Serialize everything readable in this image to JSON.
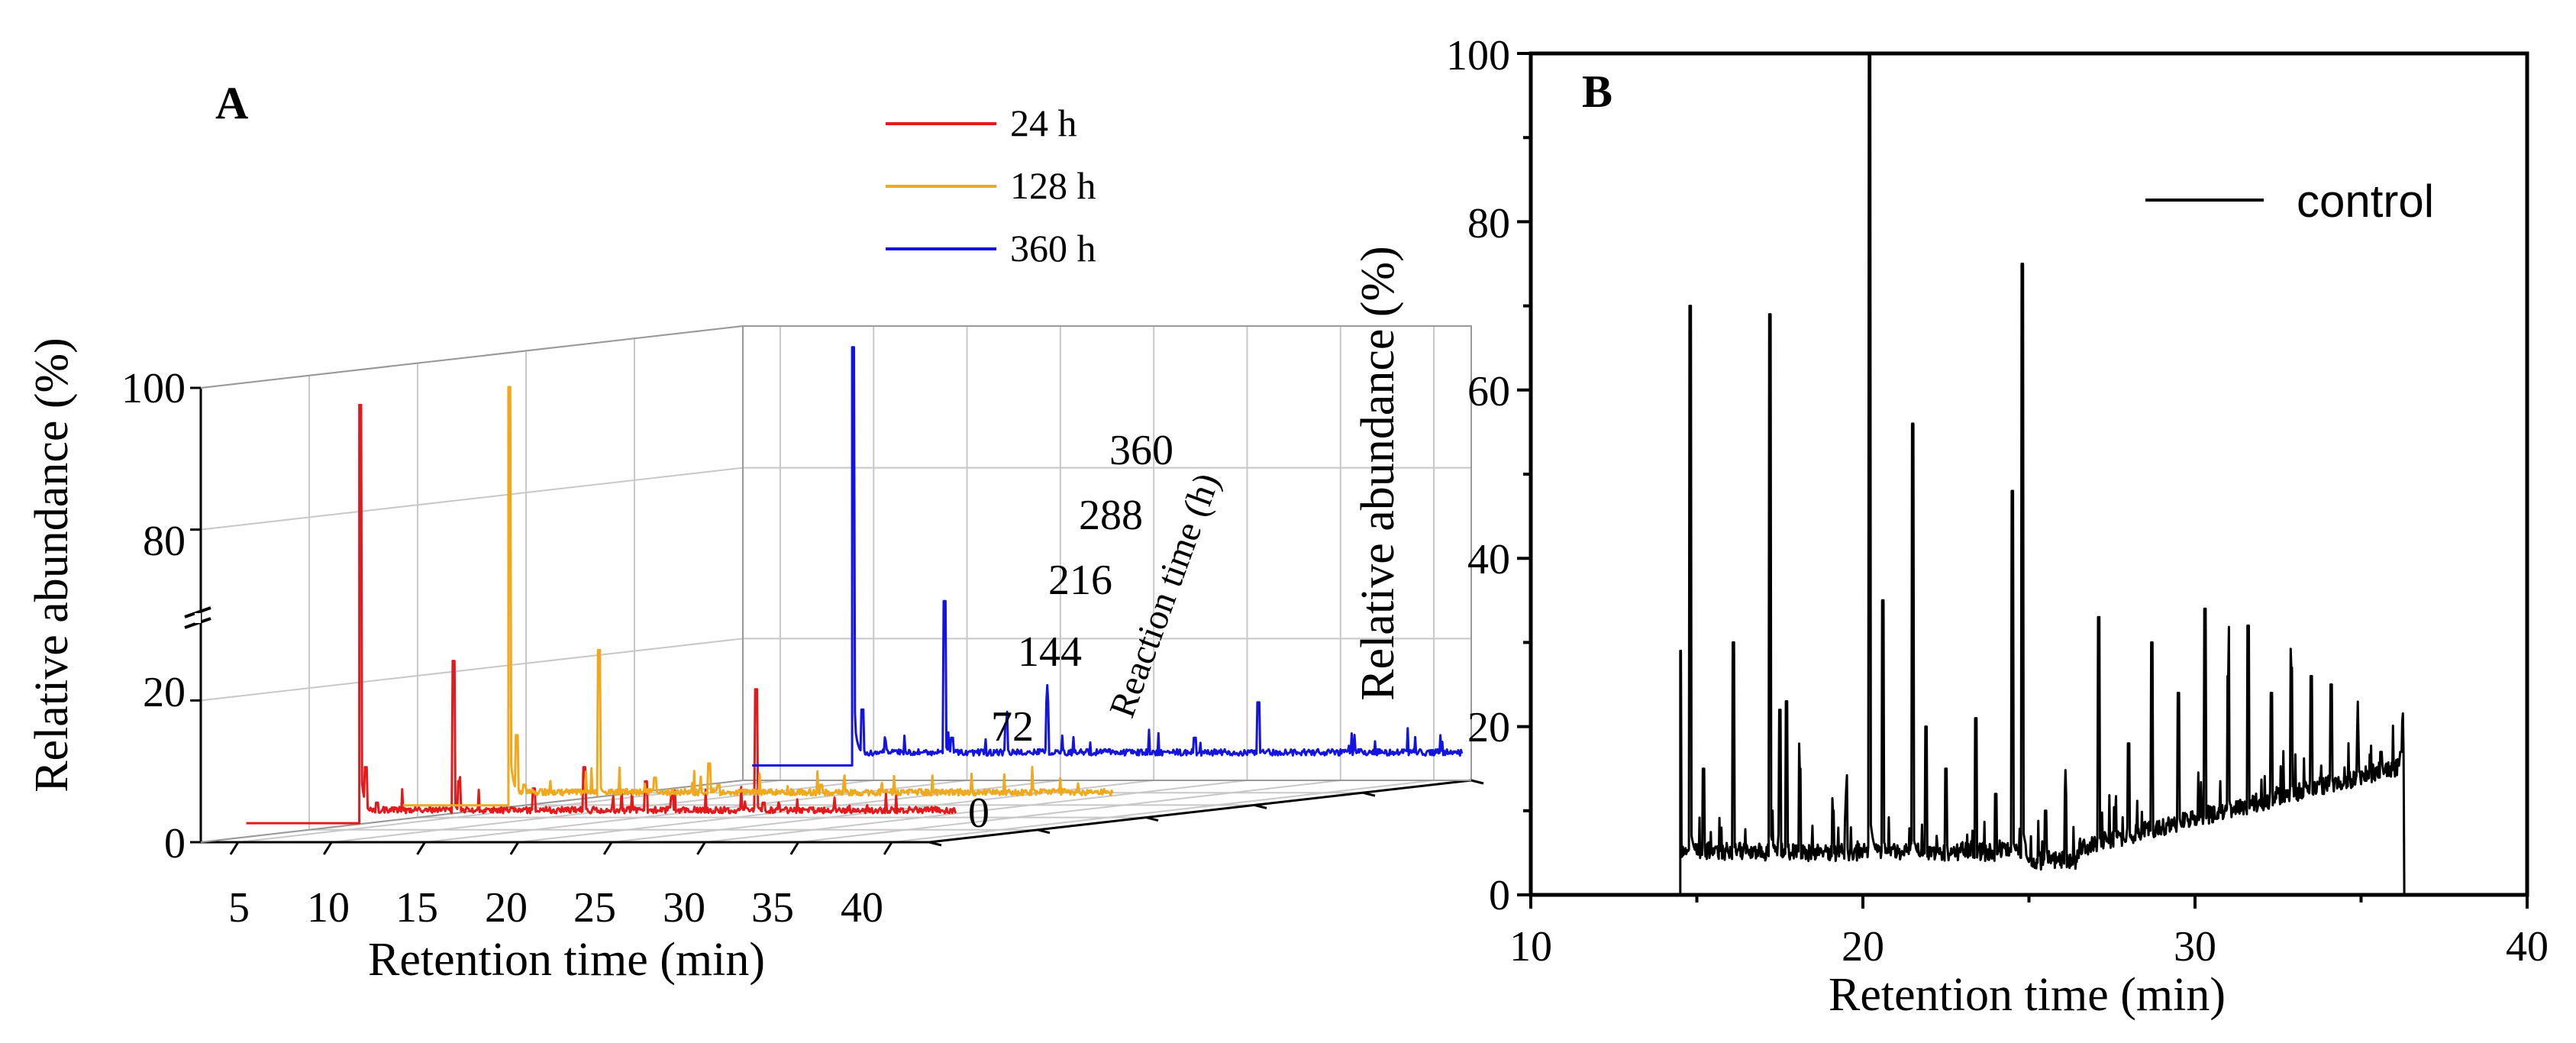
{
  "chart_data": [
    {
      "panel": "A",
      "type": "line",
      "projection": "3d-waterfall",
      "title": "",
      "xlabel": "Retention time (min)",
      "ylabel": "Relative abundance (%)",
      "zlabel": "Reaction time (h)",
      "xlim": [
        3,
        42
      ],
      "ylim": [
        0,
        100
      ],
      "y_break": [
        25,
        75
      ],
      "zlim": [
        0,
        360
      ],
      "x_ticks": [
        "5",
        "10",
        "15",
        "20",
        "25",
        "30",
        "35",
        "40"
      ],
      "y_ticks": [
        "0",
        "20",
        "80",
        "100"
      ],
      "z_ticks": [
        "0",
        "72",
        "144",
        "216",
        "288",
        "360"
      ],
      "legend_position": "top-right",
      "series": [
        {
          "name": "24 h",
          "reaction_time": 24,
          "color": "#e31a1c",
          "baseline": 3.5,
          "peaks": [
            [
              9.6,
              97
            ],
            [
              9.9,
              10
            ],
            [
              10.5,
              5
            ],
            [
              14.6,
              25
            ],
            [
              14.9,
              8
            ],
            [
              18.9,
              7
            ],
            [
              21.6,
              10
            ],
            [
              24.9,
              8
            ],
            [
              26.3,
              6
            ],
            [
              30.8,
              21
            ],
            [
              31.2,
              5
            ],
            [
              33.5,
              4
            ],
            [
              35.5,
              3
            ],
            [
              38.8,
              3
            ]
          ]
        },
        {
          "name": "128 h",
          "reaction_time": 128,
          "color": "#f0a81c",
          "baseline": 3.5,
          "peaks": [
            [
              9.2,
              97
            ],
            [
              9.6,
              12
            ],
            [
              10.0,
              5
            ],
            [
              14.0,
              24
            ],
            [
              17.0,
              6
            ],
            [
              19.9,
              8
            ],
            [
              20.4,
              5
            ],
            [
              25.9,
              5
            ],
            [
              28.2,
              4
            ],
            [
              30.5,
              3
            ],
            [
              33.5,
              3
            ],
            [
              36.6,
              3
            ]
          ]
        },
        {
          "name": "360 h",
          "reaction_time": 360,
          "color": "#1414e0",
          "baseline": 3.5,
          "peaks": [
            [
              8.9,
              97
            ],
            [
              9.4,
              10
            ],
            [
              13.8,
              26
            ],
            [
              14.2,
              6
            ],
            [
              17.1,
              8
            ],
            [
              19.3,
              11
            ],
            [
              20.1,
              4
            ],
            [
              22.5,
              4
            ],
            [
              23.1,
              3
            ],
            [
              27.2,
              6
            ],
            [
              30.6,
              11
            ],
            [
              31.6,
              3
            ],
            [
              33.3,
              3
            ],
            [
              35.9,
              2
            ]
          ]
        }
      ]
    },
    {
      "panel": "B",
      "type": "line",
      "title": "",
      "xlabel": "Retention time (min)",
      "ylabel": "Relative abundance (%)",
      "xlim": [
        10,
        40
      ],
      "ylim": [
        0,
        100
      ],
      "x_ticks": [
        "10",
        "20",
        "30",
        "40"
      ],
      "y_ticks": [
        "0",
        "20",
        "40",
        "60",
        "80",
        "100"
      ],
      "grid": false,
      "legend_position": "top-right",
      "series": [
        {
          "name": "control",
          "color": "#000000",
          "start": 14.5,
          "end": 36.3,
          "peaks": [
            [
              14.5,
              29
            ],
            [
              14.8,
              70
            ],
            [
              15.2,
              15
            ],
            [
              16.1,
              30
            ],
            [
              17.2,
              69
            ],
            [
              17.5,
              22
            ],
            [
              17.7,
              23
            ],
            [
              18.1,
              15
            ],
            [
              19.1,
              10
            ],
            [
              19.5,
              11
            ],
            [
              20.2,
              100
            ],
            [
              20.6,
              35
            ],
            [
              21.5,
              56
            ],
            [
              21.9,
              20
            ],
            [
              22.5,
              15
            ],
            [
              23.4,
              21
            ],
            [
              24.0,
              12
            ],
            [
              24.5,
              48
            ],
            [
              24.8,
              75
            ],
            [
              25.5,
              10
            ],
            [
              26.1,
              12
            ],
            [
              27.1,
              33
            ],
            [
              28.0,
              18
            ],
            [
              28.7,
              30
            ],
            [
              29.5,
              24
            ],
            [
              30.3,
              34
            ],
            [
              31.0,
              26
            ],
            [
              31.6,
              32
            ],
            [
              32.3,
              24
            ],
            [
              32.9,
              27
            ],
            [
              33.5,
              26
            ],
            [
              34.1,
              25
            ],
            [
              34.9,
              19
            ],
            [
              35.6,
              17
            ],
            [
              36.2,
              17
            ]
          ]
        }
      ]
    }
  ],
  "panelA": {
    "label": "A",
    "xlabel": "Retention time (min)",
    "ylabel": "Relative abundance (%)",
    "zlabel": "Reaction time (h)",
    "x_ticks": [
      "5",
      "10",
      "15",
      "20",
      "25",
      "30",
      "35",
      "40"
    ],
    "y_ticks": [
      "0",
      "20",
      "80",
      "100"
    ],
    "z_ticks": [
      "0",
      "72",
      "144",
      "216",
      "288",
      "360"
    ],
    "legend": [
      "24 h",
      "128 h",
      "360 h"
    ]
  },
  "panelB": {
    "label": "B",
    "xlabel": "Retention time (min)",
    "ylabel": "Relative abundance (%)",
    "x_ticks": [
      "10",
      "20",
      "30",
      "40"
    ],
    "y_ticks": [
      "0",
      "20",
      "40",
      "60",
      "80",
      "100"
    ],
    "legend": [
      "control"
    ]
  }
}
